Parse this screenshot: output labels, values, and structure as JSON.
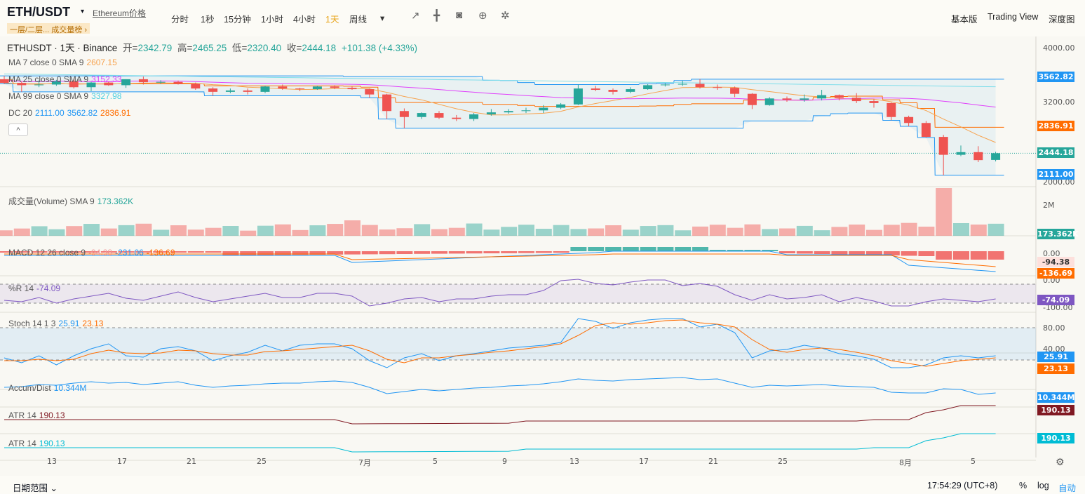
{
  "header": {
    "pair": "ETH/USDT",
    "caret": "▾",
    "link": "Ethereum价格",
    "tag_a": "一层/二层...",
    "tag_b": "成交量榜",
    "tag_arrow": "›",
    "intervals": [
      "分时",
      "1秒",
      "15分钟",
      "1小时",
      "4小时",
      "1天",
      "周线"
    ],
    "active_interval": "1天",
    "more": "▾",
    "tools": {
      "indicator": "↗",
      "candle": "╋",
      "camera": "◙",
      "plus": "⊕",
      "gear": "✲"
    },
    "views": [
      "基本版",
      "Trading View",
      "深度图"
    ]
  },
  "legend": {
    "symbol": "ETHUSDT · 1天 · Binance",
    "ohlc": {
      "o_label": "开=",
      "o": "2342.79",
      "h_label": "高=",
      "h": "2465.25",
      "l_label": "低=",
      "l": "2320.40",
      "c_label": "收=",
      "c": "2444.18",
      "chg": "+101.38 (+4.33%)"
    },
    "ma7": {
      "label": "MA 7 close 0 SMA 9",
      "value": "2607.15"
    },
    "ma25": {
      "label": "MA 25 close 0 SMA 9",
      "value": "3152.33"
    },
    "ma99": {
      "label": "MA 99 close 0 SMA 9",
      "value": "3327.98"
    },
    "dc": {
      "label": "DC 20",
      "lower": "2111.00",
      "upper": "3562.82",
      "mid": "2836.91"
    },
    "collapse": "^",
    "volume": {
      "label": "成交量(Volume) SMA 9",
      "value": "173.362K"
    },
    "macd": {
      "label": "MACD 12 26 close 9",
      "hist": "-94.38",
      "macd": "-231.06",
      "signal": "-136.69"
    },
    "wr": {
      "label": "%R 14",
      "value": "-74.09"
    },
    "stoch": {
      "label": "Stoch 14 1 3",
      "k": "25.91",
      "d": "23.13"
    },
    "ad": {
      "label": "Accum/Dist",
      "value": "10.344M"
    },
    "atr1": {
      "label": "ATR 14",
      "value": "190.13"
    },
    "atr2": {
      "label": "ATR 14",
      "value": "190.13"
    }
  },
  "price_axis": {
    "ticks": [
      "4000.00",
      "3200.00",
      "2400.00",
      "2000.00"
    ]
  },
  "pills": {
    "upper": "3562.82",
    "mid": "2836.91",
    "last": "2444.18",
    "lower": "2111.00",
    "vol": "173.362K",
    "macd_hist": "-94.38",
    "macd_signal": "-136.69",
    "wr": "-74.09",
    "stoch_k": "25.91",
    "stoch_d": "23.13",
    "ad": "10.344M",
    "atr1": "190.13",
    "atr2": "190.13"
  },
  "sub_axes": {
    "vol": "2M",
    "macd": "0.00",
    "wr_top": "0.00",
    "wr_bot": "-100.00",
    "stoch_80": "80.00",
    "stoch_40": "40.00"
  },
  "time_axis": [
    "13",
    "17",
    "21",
    "25",
    "7月",
    "5",
    "9",
    "13",
    "17",
    "21",
    "25",
    "8月",
    "5"
  ],
  "colors": {
    "up": "#26a69a",
    "down": "#ef5350",
    "bg": "#f9f8f3",
    "ma7": "#f7a34f",
    "ma25": "#e040fb",
    "ma99": "#80deea",
    "dc": "#2196f3",
    "dcmid": "#ff6d00"
  },
  "chart_data": {
    "type": "candlestick",
    "dates": [
      "6/12",
      "6/13",
      "6/14",
      "6/15",
      "6/16",
      "6/17",
      "6/18",
      "6/19",
      "6/20",
      "6/21",
      "6/22",
      "6/23",
      "6/24",
      "6/25",
      "6/26",
      "6/27",
      "6/28",
      "6/29",
      "6/30",
      "7/1",
      "7/2",
      "7/3",
      "7/4",
      "7/5",
      "7/6",
      "7/7",
      "7/8",
      "7/9",
      "7/10",
      "7/11",
      "7/12",
      "7/13",
      "7/14",
      "7/15",
      "7/16",
      "7/17",
      "7/18",
      "7/19",
      "7/20",
      "7/21",
      "7/22",
      "7/23",
      "7/24",
      "7/25",
      "7/26",
      "7/27",
      "7/28",
      "7/29",
      "7/30",
      "7/31",
      "8/1",
      "8/2",
      "8/3",
      "8/4",
      "8/5",
      "8/6",
      "8/7",
      "8/8"
    ],
    "ohlc": [
      [
        3560,
        3610,
        3490,
        3505
      ],
      [
        3505,
        3525,
        3370,
        3470
      ],
      [
        3470,
        3540,
        3440,
        3480
      ],
      [
        3480,
        3550,
        3460,
        3530
      ],
      [
        3530,
        3560,
        3420,
        3440
      ],
      [
        3440,
        3520,
        3380,
        3510
      ],
      [
        3510,
        3530,
        3460,
        3470
      ],
      [
        3470,
        3560,
        3430,
        3560
      ],
      [
        3560,
        3600,
        3480,
        3515
      ],
      [
        3515,
        3545,
        3490,
        3520
      ],
      [
        3520,
        3540,
        3480,
        3490
      ],
      [
        3490,
        3510,
        3400,
        3420
      ],
      [
        3420,
        3440,
        3310,
        3370
      ],
      [
        3370,
        3420,
        3350,
        3390
      ],
      [
        3390,
        3420,
        3330,
        3370
      ],
      [
        3370,
        3460,
        3350,
        3450
      ],
      [
        3450,
        3480,
        3400,
        3420
      ],
      [
        3420,
        3430,
        3380,
        3410
      ],
      [
        3410,
        3460,
        3400,
        3450
      ],
      [
        3450,
        3470,
        3410,
        3430
      ],
      [
        3430,
        3450,
        3400,
        3410
      ],
      [
        3410,
        3420,
        3280,
        3330
      ],
      [
        3330,
        3340,
        2960,
        3080
      ],
      [
        3080,
        3120,
        2820,
        2990
      ],
      [
        2990,
        3060,
        2960,
        3050
      ],
      [
        3050,
        3080,
        2960,
        2980
      ],
      [
        2980,
        3020,
        2930,
        2960
      ],
      [
        2960,
        3050,
        2930,
        3030
      ],
      [
        3030,
        3110,
        3010,
        3060
      ],
      [
        3060,
        3110,
        3040,
        3080
      ],
      [
        3080,
        3130,
        3050,
        3090
      ],
      [
        3090,
        3170,
        3050,
        3130
      ],
      [
        3130,
        3200,
        3110,
        3180
      ],
      [
        3180,
        3480,
        3170,
        3420
      ],
      [
        3420,
        3460,
        3380,
        3400
      ],
      [
        3400,
        3420,
        3330,
        3370
      ],
      [
        3370,
        3440,
        3350,
        3410
      ],
      [
        3410,
        3490,
        3400,
        3470
      ],
      [
        3470,
        3500,
        3450,
        3480
      ],
      [
        3480,
        3540,
        3460,
        3490
      ],
      [
        3490,
        3560,
        3420,
        3440
      ],
      [
        3440,
        3480,
        3400,
        3430
      ],
      [
        3430,
        3450,
        3290,
        3340
      ],
      [
        3340,
        3350,
        3110,
        3170
      ],
      [
        3170,
        3290,
        3160,
        3270
      ],
      [
        3270,
        3300,
        3220,
        3250
      ],
      [
        3250,
        3330,
        3220,
        3270
      ],
      [
        3270,
        3400,
        3240,
        3320
      ],
      [
        3320,
        3330,
        3240,
        3280
      ],
      [
        3280,
        3350,
        3200,
        3230
      ],
      [
        3230,
        3260,
        3130,
        3200
      ],
      [
        3200,
        3210,
        2940,
        2990
      ],
      [
        2990,
        3010,
        2850,
        2900
      ],
      [
        2900,
        2930,
        2680,
        2690
      ],
      [
        2690,
        2720,
        2111,
        2420
      ],
      [
        2420,
        2560,
        2400,
        2460
      ],
      [
        2460,
        2550,
        2310,
        2340
      ],
      [
        2342.79,
        2465.25,
        2320.4,
        2444.18
      ]
    ],
    "ylim": [
      1950,
      4120
    ]
  }
}
